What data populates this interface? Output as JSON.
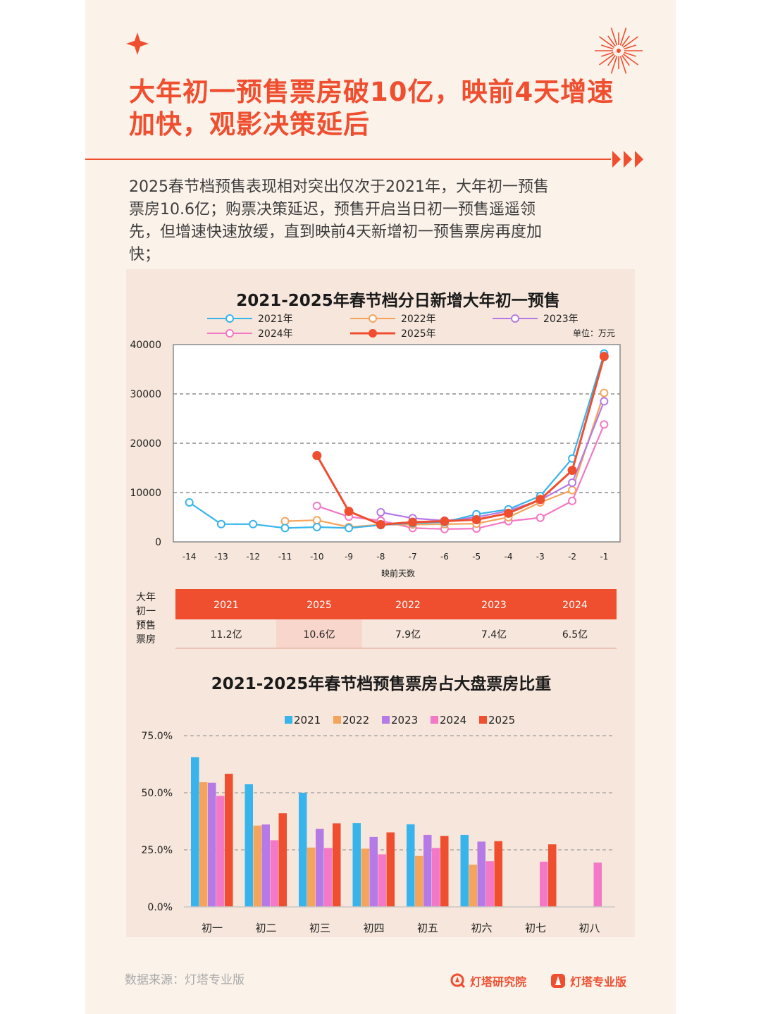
{
  "header": {
    "title_lines": [
      "大年初一预售票房破10亿，映前4天增速",
      "加快，观影决策延后"
    ],
    "summary_lines": [
      "2025春节档预售表现相对突出仅次于2021年，大年初一预售",
      "票房10.6亿；购票决策延迟，预售开启当日初一预售遥遥领",
      "先，但增速快速放缓，直到映前4天新增初一预售票房再度加",
      "快；"
    ]
  },
  "line_chart": {
    "title": "2021-2025年春节档分日新增大年初一预售",
    "unit": "单位：万元",
    "xlabel": "映前天数"
  },
  "table": {
    "row_label_lines": [
      "大年",
      "初一",
      "预售",
      "票房"
    ],
    "years": [
      "2021",
      "2025",
      "2022",
      "2023",
      "2024"
    ],
    "values": [
      "11.2亿",
      "10.6亿",
      "7.9亿",
      "7.4亿",
      "6.5亿"
    ],
    "highlight_index": 1
  },
  "bar_chart": {
    "title": "2021-2025年春节档预售票房占大盘票房比重"
  },
  "footer": {
    "source": "数据来源：灯塔专业版",
    "brand1": "灯塔研究院",
    "brand2": "灯塔专业版"
  },
  "colors": {
    "accent": "#ef4e2f",
    "y2021": "#38b4ec",
    "y2022": "#f4a45b",
    "y2023": "#b57ae6",
    "y2024": "#f378c5",
    "y2025": "#ef4e2f"
  },
  "chart_data": [
    {
      "type": "line",
      "title": "2021-2025年春节档分日新增大年初一预售",
      "xlabel": "映前天数",
      "ylabel": "",
      "unit": "单位：万元",
      "x": [
        -14,
        -13,
        -12,
        -11,
        -10,
        -9,
        -8,
        -7,
        -6,
        -5,
        -4,
        -3,
        -2,
        -1
      ],
      "ylim": [
        0,
        40000
      ],
      "yticks": [
        0,
        10000,
        20000,
        30000,
        40000
      ],
      "grid": "dashed horizontal",
      "legend": "top",
      "series": [
        {
          "name": "2021年",
          "color": "#38b4ec",
          "values": [
            8000,
            3600,
            3600,
            2800,
            3000,
            2800,
            3400,
            3800,
            4000,
            5600,
            6600,
            9300,
            16900,
            38200
          ]
        },
        {
          "name": "2022年",
          "color": "#f4a45b",
          "values": [
            null,
            null,
            null,
            4200,
            4400,
            3000,
            3500,
            3500,
            3600,
            3700,
            5000,
            8000,
            10500,
            30200
          ]
        },
        {
          "name": "2023年",
          "color": "#b57ae6",
          "values": [
            null,
            null,
            null,
            null,
            null,
            null,
            6000,
            4800,
            4300,
            5000,
            6300,
            8500,
            12000,
            28500
          ]
        },
        {
          "name": "2024年",
          "color": "#f378c5",
          "values": [
            null,
            null,
            null,
            null,
            7300,
            5100,
            4300,
            2800,
            2600,
            2700,
            4200,
            4900,
            8300,
            23800
          ]
        },
        {
          "name": "2025年",
          "color": "#ef4e2f",
          "values": [
            null,
            null,
            null,
            null,
            17500,
            6200,
            3500,
            4000,
            4200,
            4500,
            5800,
            8600,
            14500,
            37600
          ]
        }
      ]
    },
    {
      "type": "table",
      "title": "大年初一预售票房",
      "columns": [
        "2021",
        "2025",
        "2022",
        "2023",
        "2024"
      ],
      "values": [
        "11.2亿",
        "10.6亿",
        "7.9亿",
        "7.4亿",
        "6.5亿"
      ]
    },
    {
      "type": "bar",
      "title": "2021-2025年春节档预售票房占大盘票房比重",
      "categories": [
        "初一",
        "初二",
        "初三",
        "初四",
        "初五",
        "初六",
        "初七",
        "初八"
      ],
      "ylim": [
        0,
        75
      ],
      "yticks": [
        "0.0%",
        "25.0%",
        "50.0%",
        "75.0%"
      ],
      "legend": "top",
      "series": [
        {
          "name": "2021",
          "color": "#38b4ec",
          "values": [
            65.6,
            53.7,
            50.0,
            36.7,
            36.2,
            31.5,
            null,
            null
          ]
        },
        {
          "name": "2022",
          "color": "#f4a45b",
          "values": [
            54.6,
            35.6,
            26.0,
            25.5,
            22.3,
            18.5,
            null,
            null
          ]
        },
        {
          "name": "2023",
          "color": "#b57ae6",
          "values": [
            54.4,
            36.1,
            34.2,
            30.6,
            31.5,
            28.6,
            null,
            null
          ]
        },
        {
          "name": "2024",
          "color": "#f378c5",
          "values": [
            48.6,
            29.2,
            25.8,
            23.0,
            25.8,
            20.0,
            19.8,
            19.4
          ]
        },
        {
          "name": "2025",
          "color": "#ef4e2f",
          "values": [
            58.3,
            41.0,
            36.6,
            32.6,
            31.1,
            28.8,
            27.4,
            null
          ]
        }
      ]
    }
  ]
}
